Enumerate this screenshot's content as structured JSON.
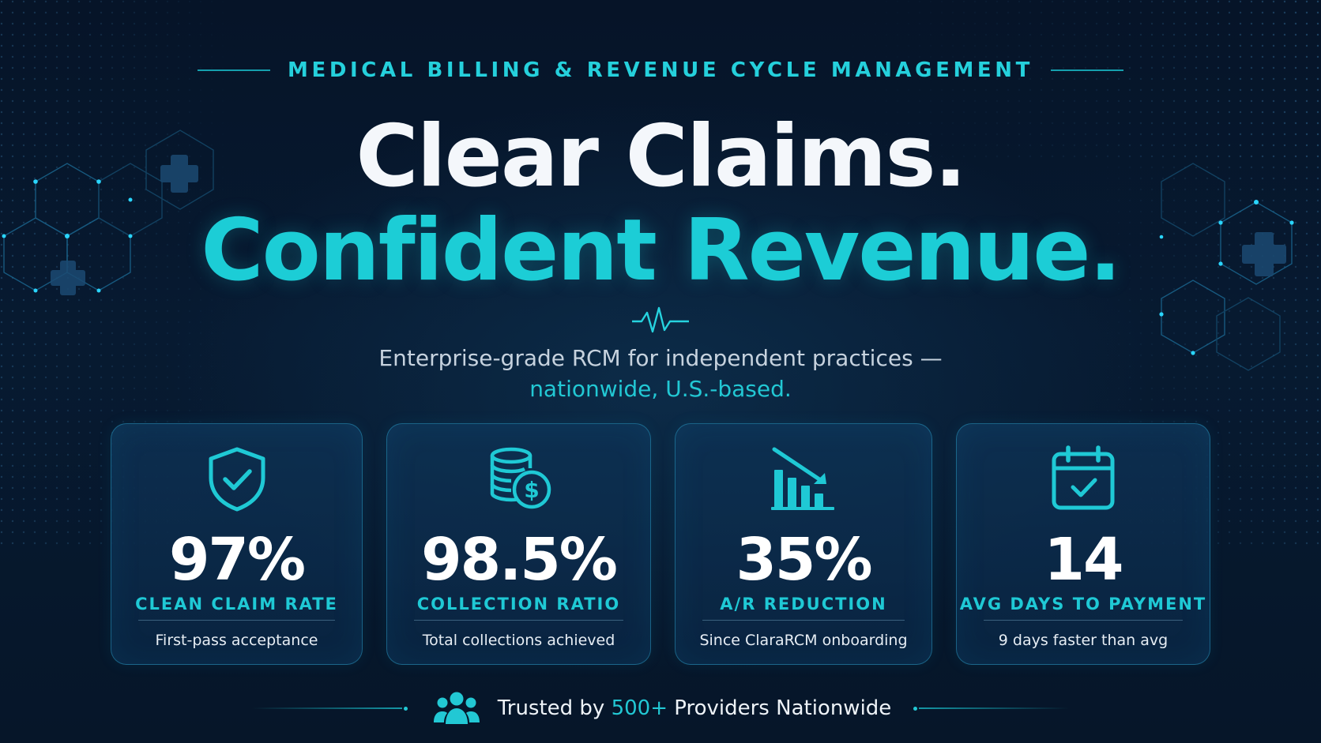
{
  "eyebrow": "MEDICAL BILLING & REVENUE CYCLE MANAGEMENT",
  "headline": {
    "line1": "Clear Claims.",
    "line2": "Confident Revenue."
  },
  "subheadline": {
    "line1": "Enterprise-grade RCM for independent practices —",
    "line2": "nationwide, U.S.-based."
  },
  "stats": [
    {
      "icon": "shield-check-icon",
      "value": "97%",
      "label": "CLEAN CLAIM RATE",
      "note": "First-pass acceptance"
    },
    {
      "icon": "coins-dollar-icon",
      "value": "98.5%",
      "label": "COLLECTION RATIO",
      "note": "Total collections achieved"
    },
    {
      "icon": "declining-bars-icon",
      "value": "35%",
      "label": "A/R REDUCTION",
      "note": "Since ClaraRCM onboarding"
    },
    {
      "icon": "calendar-check-icon",
      "value": "14",
      "label": "AVG DAYS TO PAYMENT",
      "note": "9 days faster than avg"
    }
  ],
  "footer": {
    "icon": "users-group-icon",
    "prefix": "Trusted by ",
    "highlight": "500+",
    "suffix": " Providers Nationwide"
  },
  "colors": {
    "background": "#061428",
    "accent": "#1ccdd6",
    "text": "#ffffff",
    "muted": "#c6d2de"
  }
}
